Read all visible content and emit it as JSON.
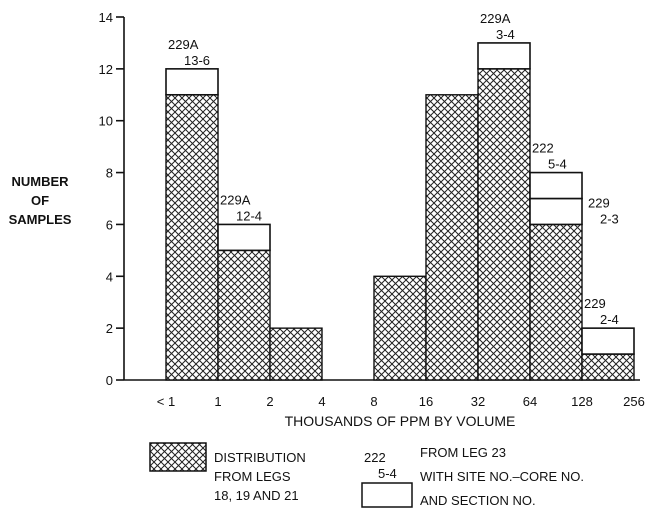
{
  "chart_data": {
    "type": "bar",
    "title": "",
    "ylabel_lines": [
      "NUMBER",
      "OF",
      "SAMPLES"
    ],
    "xlabel": "THOUSANDS OF PPM BY VOLUME",
    "ylim": [
      0,
      14
    ],
    "yticks": [
      0,
      2,
      4,
      6,
      8,
      10,
      12,
      14
    ],
    "xticks": [
      "< 1",
      "1",
      "2",
      "4",
      "8",
      "16",
      "32",
      "64",
      "128",
      "256"
    ],
    "categories": [
      "<1-1",
      "1-2",
      "2-4",
      "4-8",
      "8-16",
      "16-32",
      "32-64",
      "64-128",
      "128-256"
    ],
    "series": [
      {
        "name": "DISTRIBUTION FROM LEGS 18, 19 AND 21",
        "values": [
          11,
          5,
          2,
          0,
          4,
          11,
          12,
          6,
          1
        ]
      },
      {
        "name": "FROM LEG 23 WITH SITE NO.-CORE NO. AND SECTION NO.",
        "values": [
          1,
          1,
          0,
          0,
          0,
          0,
          1,
          2,
          1
        ]
      }
    ],
    "leg23_samples": [
      {
        "category_index": 0,
        "lines": [
          "229A",
          "13-6"
        ]
      },
      {
        "category_index": 1,
        "lines": [
          "229A",
          "12-4"
        ]
      },
      {
        "category_index": 6,
        "lines": [
          "229A",
          "3-4"
        ]
      },
      {
        "category_index": 7,
        "lines": [
          "229",
          "2-3"
        ]
      },
      {
        "category_index": 7,
        "lines": [
          "222",
          "5-4"
        ]
      },
      {
        "category_index": 8,
        "lines": [
          "229",
          "2-4"
        ]
      }
    ],
    "legend": {
      "hatched_lines": [
        "DISTRIBUTION",
        "FROM LEGS",
        "18, 19 AND 21"
      ],
      "example_label": [
        "222",
        "5-4"
      ],
      "open_lines": [
        "FROM LEG 23",
        "WITH SITE NO.–CORE NO.",
        "AND SECTION NO."
      ]
    }
  }
}
